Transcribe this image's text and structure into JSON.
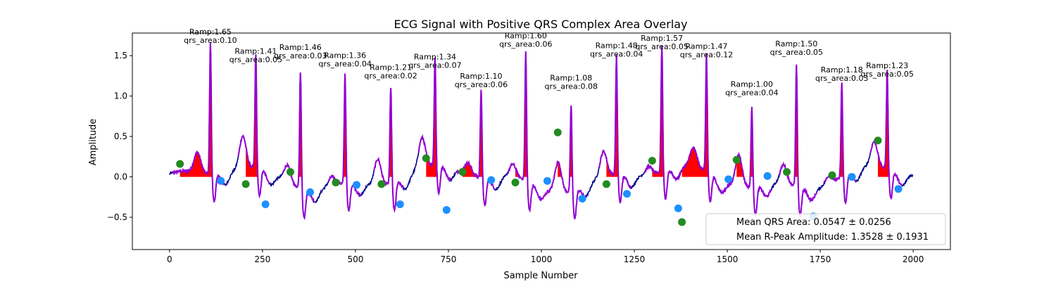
{
  "chart_data": {
    "type": "line",
    "title": "ECG Signal with Positive QRS Complex Area Overlay",
    "xlabel": "Sample Number",
    "ylabel": "Amplitude",
    "xlim": [
      -100,
      2100
    ],
    "ylim": [
      -0.9,
      1.78
    ],
    "xticks": [
      0,
      250,
      500,
      750,
      1000,
      1250,
      1500,
      1750,
      2000
    ],
    "xtick_labels": [
      "0",
      "250",
      "500",
      "750",
      "1000",
      "1250",
      "1500",
      "1750",
      "2000"
    ],
    "yticks": [
      -0.5,
      0.0,
      0.5,
      1.0,
      1.5
    ],
    "ytick_labels": [
      "−0.5",
      "0.0",
      "0.5",
      "1.0",
      "1.5"
    ],
    "grid": false,
    "colors": {
      "signal": "#00008b",
      "qrs_segment": "#9400d3",
      "area_fill": "#ff0000",
      "onset_marker": "#228b22",
      "offset_marker": "#1e90ff"
    },
    "legend": {
      "placement": "lower-right",
      "entries": [
        "Mean QRS Area: 0.0547 ± 0.0256",
        "Mean R-Peak Amplitude: 1.3528 ± 0.1931"
      ]
    },
    "beats": [
      {
        "r_x": 110,
        "r_amp": 1.65,
        "ramp_label": "Ramp:1.65",
        "area_label": "qrs_area:0.10",
        "onset": [
          28,
          0.16
        ],
        "offset": [
          138,
          -0.05
        ]
      },
      {
        "r_x": 232,
        "r_amp": 1.41,
        "ramp_label": "Ramp:1.41",
        "area_label": "qrs_area:0.05",
        "onset": [
          205,
          -0.09
        ],
        "offset": [
          258,
          -0.34
        ]
      },
      {
        "r_x": 352,
        "r_amp": 1.46,
        "ramp_label": "Ramp:1.46",
        "area_label": "qrs_area:0.03",
        "onset": [
          325,
          0.06
        ],
        "offset": [
          378,
          -0.19
        ]
      },
      {
        "r_x": 472,
        "r_amp": 1.36,
        "ramp_label": "Ramp:1.36",
        "area_label": "qrs_area:0.04",
        "onset": [
          447,
          -0.07
        ],
        "offset": [
          503,
          -0.1
        ]
      },
      {
        "r_x": 595,
        "r_amp": 1.21,
        "ramp_label": "Ramp:1.21",
        "area_label": "qrs_area:0.02",
        "onset": [
          570,
          -0.09
        ],
        "offset": [
          620,
          -0.34
        ]
      },
      {
        "r_x": 714,
        "r_amp": 1.34,
        "ramp_label": "Ramp:1.34",
        "area_label": "qrs_area:0.07",
        "onset": [
          690,
          0.23
        ],
        "offset": [
          745,
          -0.41
        ]
      },
      {
        "r_x": 838,
        "r_amp": 1.1,
        "ramp_label": "Ramp:1.10",
        "area_label": "qrs_area:0.06",
        "onset": [
          788,
          0.06
        ],
        "offset": [
          865,
          -0.04
        ]
      },
      {
        "r_x": 958,
        "r_amp": 1.6,
        "ramp_label": "Ramp:1.60",
        "area_label": "qrs_area:0.06",
        "onset": [
          930,
          -0.07
        ],
        "offset": [
          1016,
          -0.05
        ]
      },
      {
        "r_x": 1080,
        "r_amp": 1.08,
        "ramp_label": "Ramp:1.08",
        "area_label": "qrs_area:0.08",
        "onset": [
          1044,
          0.55
        ],
        "offset": [
          1110,
          -0.27
        ]
      },
      {
        "r_x": 1202,
        "r_amp": 1.48,
        "ramp_label": "Ramp:1.48",
        "area_label": "qrs_area:0.04",
        "onset": [
          1175,
          -0.09
        ],
        "offset": [
          1230,
          -0.21
        ]
      },
      {
        "r_x": 1324,
        "r_amp": 1.57,
        "ramp_label": "Ramp:1.57",
        "area_label": "qrs_area:0.05",
        "onset": [
          1298,
          0.2
        ],
        "offset": [
          1368,
          -0.39
        ]
      },
      {
        "r_x": 1444,
        "r_amp": 1.47,
        "ramp_label": "Ramp:1.47",
        "area_label": "qrs_area:0.12",
        "onset": [
          1378,
          -0.56
        ],
        "offset": [
          1503,
          -0.03
        ]
      },
      {
        "r_x": 1566,
        "r_amp": 1.0,
        "ramp_label": "Ramp:1.00",
        "area_label": "qrs_area:0.04",
        "onset": [
          1525,
          0.21
        ],
        "offset": [
          1608,
          0.01
        ]
      },
      {
        "r_x": 1686,
        "r_amp": 1.5,
        "ramp_label": "Ramp:1.50",
        "area_label": "qrs_area:0.05",
        "onset": [
          1660,
          0.06
        ],
        "offset": [
          1731,
          -0.49
        ]
      },
      {
        "r_x": 1808,
        "r_amp": 1.18,
        "ramp_label": "Ramp:1.18",
        "area_label": "qrs_area:0.03",
        "onset": [
          1782,
          0.02
        ],
        "offset": [
          1835,
          0.0
        ]
      },
      {
        "r_x": 1930,
        "r_amp": 1.23,
        "ramp_label": "Ramp:1.23",
        "area_label": "qrs_area:0.05",
        "onset": [
          1905,
          0.45
        ],
        "offset": [
          1960,
          -0.15
        ]
      }
    ]
  }
}
